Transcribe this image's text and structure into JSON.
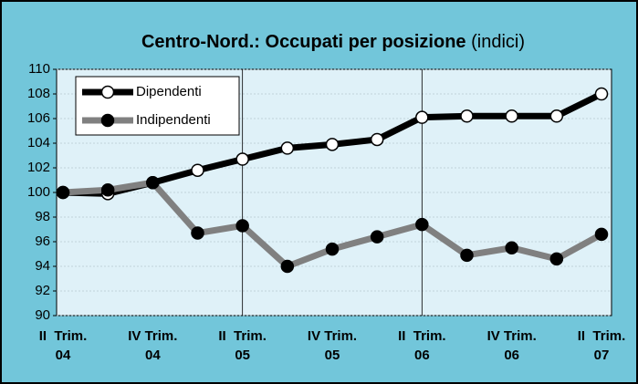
{
  "chart_data": {
    "type": "line",
    "title": "Centro-Nord.: Occupati per posizione",
    "subtitle": "(indici)",
    "categories": [
      "II  Trim.\n04",
      null,
      "IV Trim.\n04",
      null,
      "II  Trim.\n05",
      null,
      "IV Trim.\n05",
      null,
      "II  Trim.\n06",
      null,
      "IV Trim.\n06",
      null,
      "II  Trim.\n07"
    ],
    "series": [
      {
        "name": "Dipendenti",
        "color": "#000000",
        "marker_fill": "#ffffff",
        "values": [
          100,
          99.9,
          100.8,
          101.8,
          102.7,
          103.6,
          103.9,
          104.3,
          106.1,
          106.2,
          106.2,
          106.2,
          108.0
        ]
      },
      {
        "name": "Indipendenti",
        "color": "#808080",
        "marker_fill": "#000000",
        "values": [
          100,
          100.2,
          100.8,
          96.7,
          97.3,
          94.0,
          95.4,
          96.4,
          97.4,
          94.9,
          95.5,
          94.6,
          96.6
        ]
      }
    ],
    "ylim": [
      90,
      110
    ],
    "yticks": [
      90,
      92,
      94,
      96,
      98,
      100,
      102,
      104,
      106,
      108,
      110
    ],
    "grid": true,
    "legend": "upper left"
  }
}
